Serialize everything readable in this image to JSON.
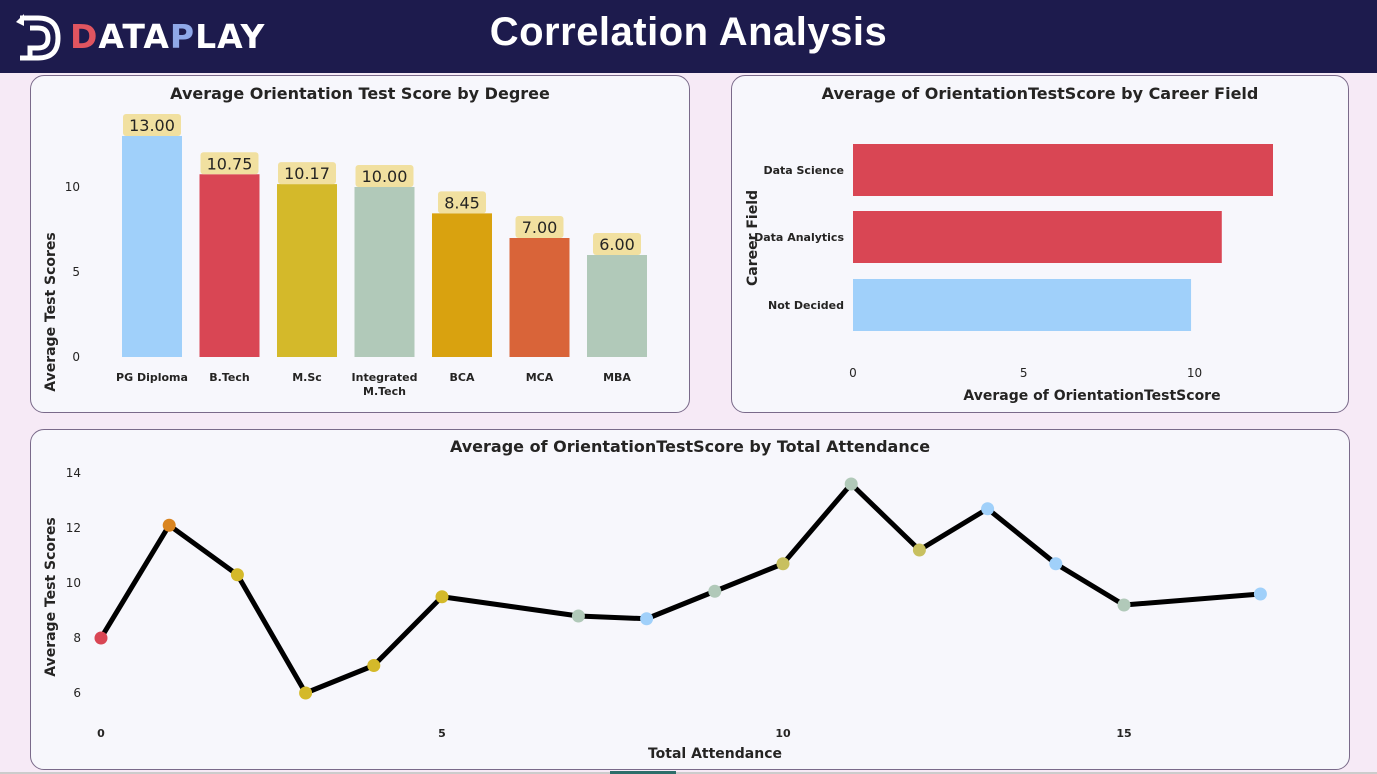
{
  "header": {
    "logo_text_1": "D",
    "logo_text_2": "ATA",
    "logo_text_3": "P",
    "logo_text_4": "LAY",
    "title": "Correlation Analysis"
  },
  "colors": {
    "header_bg": "#1d1b4d",
    "page_bg": "#f6eaf6",
    "blue": "#a0d0fa",
    "red": "#d94654",
    "yellow": "#d4b92a",
    "sage": "#b1c9b9",
    "gold": "#d9a20f",
    "orange": "#d96439",
    "line": "#000000"
  },
  "chart_data": [
    {
      "type": "bar",
      "title": "Average Orientation Test Score by Degree",
      "xlabel": "",
      "ylabel": "Average Test Scores",
      "categories": [
        "PG Diploma",
        "B.Tech",
        "M.Sc",
        "Integrated M.Tech",
        "BCA",
        "MCA",
        "MBA"
      ],
      "category_lines": [
        [
          "PG Diploma"
        ],
        [
          "B.Tech"
        ],
        [
          "M.Sc"
        ],
        [
          "Integrated",
          "M.Tech"
        ],
        [
          "BCA"
        ],
        [
          "MCA"
        ],
        [
          "MBA"
        ]
      ],
      "values": [
        13.0,
        10.75,
        10.17,
        10.0,
        8.45,
        7.0,
        6.0
      ],
      "data_labels": [
        "13.00",
        "10.75",
        "10.17",
        "10.00",
        "8.45",
        "7.00",
        "6.00"
      ],
      "bar_colors": [
        "#a0d0fa",
        "#d94654",
        "#d4b92a",
        "#b1c9b9",
        "#d9a20f",
        "#d96439",
        "#b1c9b9"
      ],
      "ylim": [
        0,
        13
      ],
      "yticks": [
        0,
        5,
        10
      ],
      "grid": false
    },
    {
      "type": "bar",
      "orientation": "horizontal",
      "title": "Average of OrientationTestScore by Career Field",
      "xlabel": "Average of OrientationTestScore",
      "ylabel": "Career Field",
      "categories": [
        "Data Science",
        "Data Analytics",
        "Not Decided"
      ],
      "values": [
        12.3,
        10.8,
        9.9
      ],
      "bar_colors": [
        "#d94654",
        "#d94654",
        "#a0d0fa"
      ],
      "xlim": [
        0,
        12.3
      ],
      "xticks": [
        0,
        5,
        10
      ],
      "grid": false
    },
    {
      "type": "line",
      "title": "Average of OrientationTestScore by Total Attendance",
      "xlabel": "Total Attendance",
      "ylabel": "Average Test Scores",
      "x": [
        0,
        1,
        2,
        3,
        4,
        5,
        7,
        8,
        9,
        10,
        11,
        12,
        13,
        14,
        15,
        17
      ],
      "y": [
        8.0,
        12.1,
        10.3,
        6.0,
        7.0,
        9.5,
        8.8,
        8.7,
        9.7,
        10.7,
        13.6,
        11.2,
        12.7,
        10.7,
        9.2,
        9.6
      ],
      "point_colors": [
        "#d94654",
        "#d9841f",
        "#d4b92a",
        "#d4b92a",
        "#d4b92a",
        "#d4b92a",
        "#b1c9b9",
        "#a0d0fa",
        "#b1c9b9",
        "#c8c060",
        "#b1c9b9",
        "#c8c060",
        "#a0d0fa",
        "#a0d0fa",
        "#b1c9b9",
        "#a0d0fa"
      ],
      "xticks": [
        0,
        5,
        10,
        15
      ],
      "yticks": [
        6,
        8,
        10,
        12,
        14
      ],
      "xlim": [
        0,
        17
      ],
      "ylim": [
        5.6,
        14
      ],
      "grid": false
    }
  ]
}
